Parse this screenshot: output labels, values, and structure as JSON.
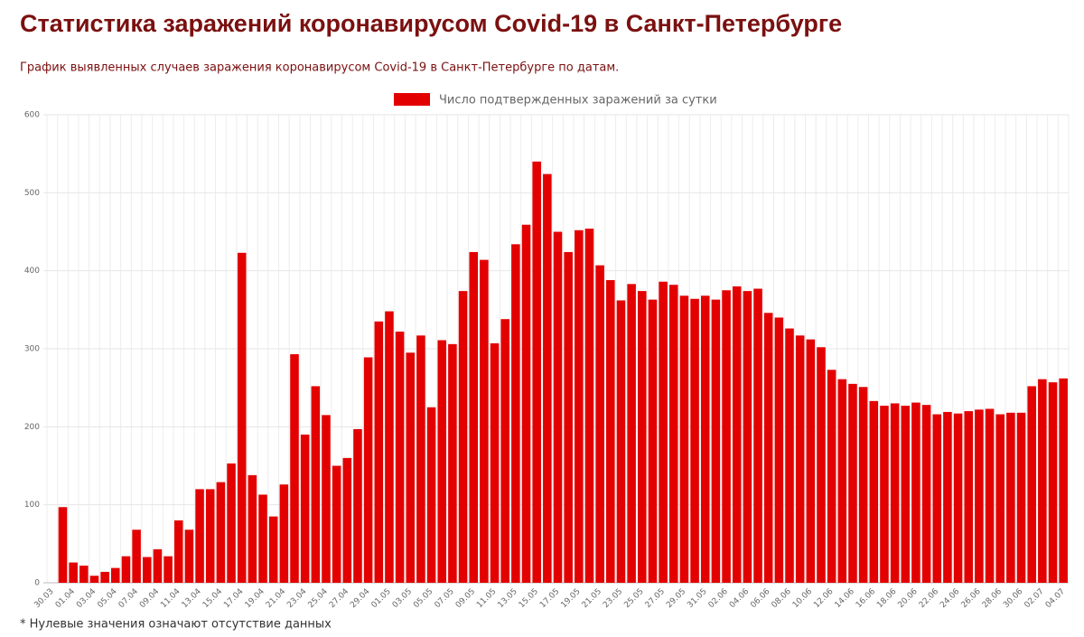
{
  "header": {
    "title": "Статистика заражений коронавирусом Covid-19 в Санкт-Петербурге",
    "subtitle": "График выявленных случаев заражения коронавирусом Covid-19 в Санкт-Петербурге по датам."
  },
  "chart_data": {
    "type": "bar",
    "series": [
      {
        "name": "Число подтвержденных заражений за сутки",
        "color": "#e30000",
        "values": [
          0,
          97,
          26,
          22,
          9,
          14,
          19,
          34,
          68,
          33,
          43,
          34,
          80,
          68,
          120,
          120,
          129,
          153,
          423,
          138,
          113,
          85,
          126,
          293,
          190,
          252,
          215,
          150,
          160,
          197,
          289,
          335,
          348,
          322,
          295,
          317,
          225,
          311,
          306,
          374,
          424,
          414,
          307,
          338,
          434,
          459,
          540,
          524,
          450,
          424,
          452,
          454,
          407,
          388,
          362,
          383,
          374,
          363,
          386,
          382,
          368,
          364,
          368,
          363,
          375,
          380,
          374,
          377,
          346,
          340,
          326,
          317,
          312,
          302,
          273,
          261,
          255,
          251,
          233,
          227,
          230,
          227,
          231,
          228,
          216,
          219,
          217,
          220,
          222,
          223,
          216,
          218,
          218,
          252,
          261,
          257,
          262
        ]
      }
    ],
    "categories": [
      "30.03",
      null,
      "01.04",
      null,
      "03.04",
      null,
      "05.04",
      null,
      "07.04",
      null,
      "09.04",
      null,
      "11.04",
      null,
      "13.04",
      null,
      "15.04",
      null,
      "17.04",
      null,
      "19.04",
      null,
      "21.04",
      null,
      "23.04",
      null,
      "25.04",
      null,
      "27.04",
      null,
      "29.04",
      null,
      "01.05",
      null,
      "03.05",
      null,
      "05.05",
      null,
      "07.05",
      null,
      "09.05",
      null,
      "11.05",
      null,
      "13.05",
      null,
      "15.05",
      null,
      "17.05",
      null,
      "19.05",
      null,
      "21.05",
      null,
      "23.05",
      null,
      "25.05",
      null,
      "27.05",
      null,
      "29.05",
      null,
      "31.05",
      null,
      "02.06",
      null,
      "04.06",
      null,
      "06.06",
      null,
      "08.06",
      null,
      "10.06",
      null,
      "12.06",
      null,
      "14.06",
      null,
      "16.06",
      null,
      "18.06",
      null,
      "20.06",
      null,
      "22.06",
      null,
      "24.06",
      null,
      "26.06",
      null,
      "28.06",
      null,
      "30.06",
      null,
      "02.07",
      null,
      "04.07"
    ],
    "ylim": [
      0,
      600
    ],
    "yticks": [
      0,
      100,
      200,
      300,
      400,
      500,
      600
    ],
    "grid": true
  },
  "footnote": "* Нулевые значения означают отсутствие данных"
}
